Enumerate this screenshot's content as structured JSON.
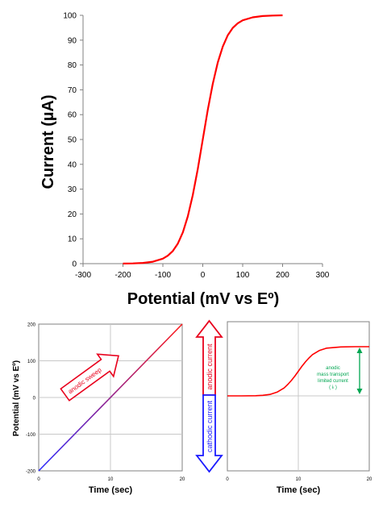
{
  "colors": {
    "curve": "#ff0000",
    "grid": "#c8c8c8",
    "axis": "#808080",
    "anodic": "#e8001c",
    "cathodic": "#1a1aff",
    "limit": "#00a651",
    "ramp_start": "#2b2bff",
    "ramp_end": "#ff1a1a"
  },
  "chart_data": [
    {
      "id": "voltammogram",
      "type": "line",
      "title": "",
      "xlabel": "Potential (mV vs Eº)",
      "ylabel": "Current (µA)",
      "xlim": [
        -300,
        300
      ],
      "ylim": [
        0,
        100
      ],
      "xticks": [
        "-300",
        "-200",
        "-100",
        "0",
        "100",
        "200",
        "300"
      ],
      "yticks": [
        "0",
        "10",
        "20",
        "30",
        "40",
        "50",
        "60",
        "70",
        "80",
        "90",
        "100"
      ],
      "grid": false,
      "series": [
        {
          "x": [
            -200,
            -175,
            -150,
            -125,
            -100,
            -87.5,
            -75,
            -62.5,
            -50,
            -37.5,
            -25,
            -12.5,
            0,
            12.5,
            25,
            37.5,
            50,
            62.5,
            75,
            87.5,
            100,
            125,
            150,
            175,
            200
          ],
          "y": [
            0.04,
            0.11,
            0.29,
            0.77,
            2.0,
            3.2,
            5.1,
            8.1,
            12.6,
            19.0,
            27.6,
            38.1,
            50.0,
            61.9,
            72.4,
            81.0,
            87.4,
            91.9,
            94.9,
            96.8,
            98.0,
            99.2,
            99.7,
            99.9,
            100.0
          ]
        }
      ]
    },
    {
      "id": "potential-ramp",
      "type": "line",
      "title": "",
      "xlabel": "Time (sec)",
      "ylabel": "Potential (mV vs Eº)",
      "xlim": [
        0,
        20
      ],
      "ylim": [
        -200,
        200
      ],
      "xticks": [
        "0",
        "10",
        "20"
      ],
      "yticks": [
        "-200",
        "-100",
        "0",
        "100",
        "200"
      ],
      "grid": true,
      "series": [
        {
          "x": [
            0,
            20
          ],
          "y": [
            -200,
            200
          ]
        }
      ],
      "annotations": [
        "anodic sweep"
      ]
    },
    {
      "id": "current-time",
      "type": "line",
      "title": "",
      "xlabel": "Time (sec)",
      "ylabel": "",
      "xlim": [
        0,
        20
      ],
      "ylim": [
        -1,
        1
      ],
      "xticks": [
        "0",
        "10",
        "20"
      ],
      "yticks": [],
      "grid": true,
      "series": [
        {
          "x": [
            0,
            2,
            4,
            5,
            6,
            7,
            8,
            8.5,
            9,
            9.5,
            10,
            10.5,
            11,
            11.5,
            12,
            13,
            14,
            16,
            18,
            20
          ],
          "y": [
            0.0,
            0.0,
            0.004,
            0.012,
            0.03,
            0.075,
            0.16,
            0.23,
            0.31,
            0.4,
            0.5,
            0.6,
            0.69,
            0.77,
            0.84,
            0.925,
            0.97,
            0.995,
            1.0,
            1.0
          ]
        }
      ],
      "annotations": [
        "anodic",
        "mass transport",
        "limited current",
        "( iₗ )"
      ]
    }
  ],
  "labels": {
    "anodic_current": "anodic current",
    "cathodic_current": "cathodic current",
    "anodic_sweep": "anodic sweep",
    "limit_line1": "anodic",
    "limit_line2": "mass transport",
    "limit_line3": "limited current",
    "limit_line4": "( iₗ )"
  }
}
